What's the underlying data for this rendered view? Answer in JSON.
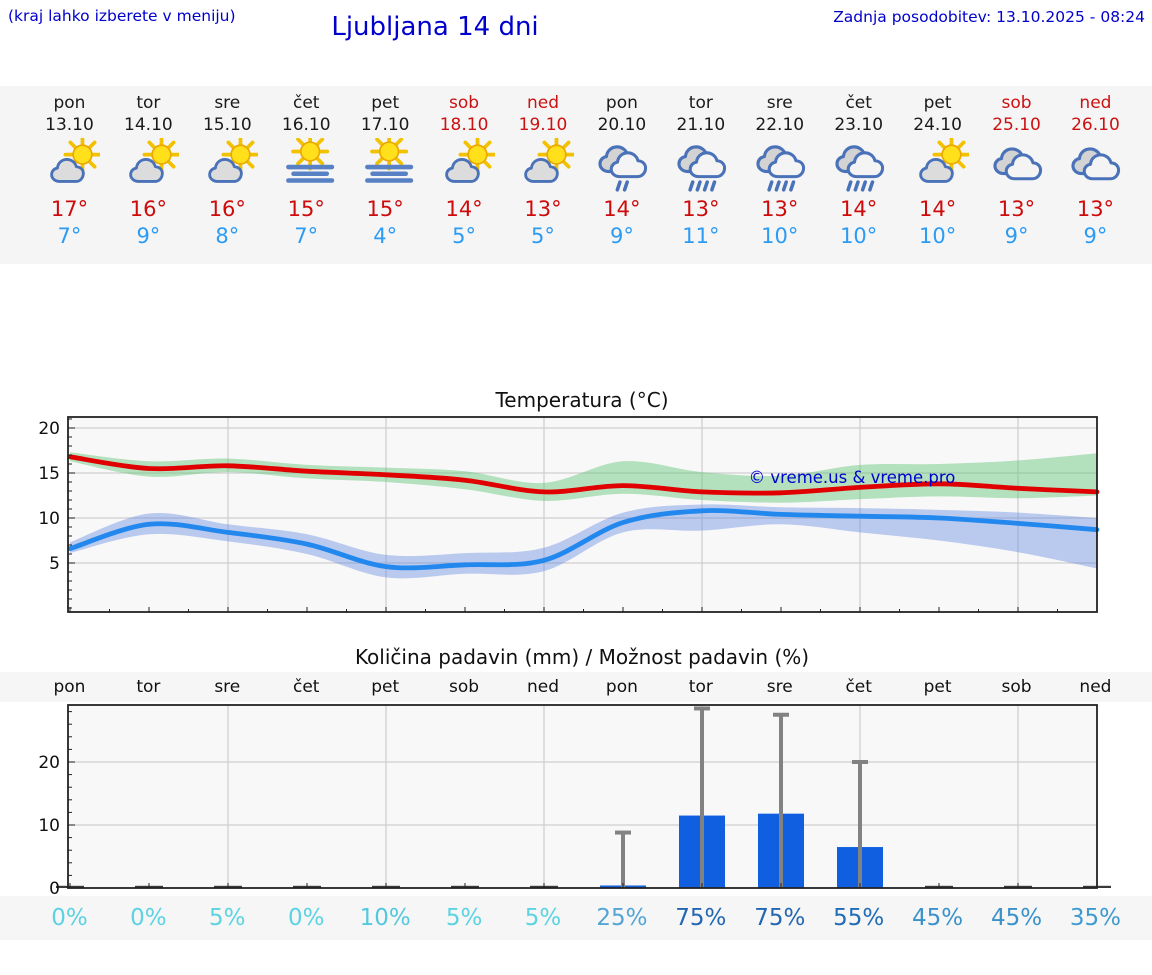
{
  "header": {
    "menu_hint": "(kraj lahko izberete v meniju)",
    "title": "Ljubljana 14 dni",
    "last_update": "Zadnja posodobitev: 13.10.2025 - 08:24"
  },
  "colors": {
    "header_blue": "#0000cc",
    "hi_red": "#cf0a0a",
    "lo_blue": "#2b9bf4",
    "weekday_text": "#1a1a1a",
    "weekend_text": "#cc1111",
    "bar_blue": "#0f5fe0",
    "whisker_gray": "#828282",
    "max_line_red": "#e00000",
    "min_line_blue": "#2288ee",
    "max_band_green": "rgba(110,200,130,0.50)",
    "min_band_blue": "rgba(100,135,225,0.42)",
    "strip_bg": "#f5f5f5",
    "plot_bg": "#f8f8f8"
  },
  "forecast": {
    "days": [
      {
        "name": "pon",
        "date": "13.10",
        "weekend": false,
        "icon": "partly-cloudy",
        "hi": "17°",
        "lo": "7°"
      },
      {
        "name": "tor",
        "date": "14.10",
        "weekend": false,
        "icon": "partly-cloudy",
        "hi": "16°",
        "lo": "9°"
      },
      {
        "name": "sre",
        "date": "15.10",
        "weekend": false,
        "icon": "partly-cloudy",
        "hi": "16°",
        "lo": "8°"
      },
      {
        "name": "čet",
        "date": "16.10",
        "weekend": false,
        "icon": "fog-sun",
        "hi": "15°",
        "lo": "7°"
      },
      {
        "name": "pet",
        "date": "17.10",
        "weekend": false,
        "icon": "fog-sun",
        "hi": "15°",
        "lo": "4°"
      },
      {
        "name": "sob",
        "date": "18.10",
        "weekend": true,
        "icon": "partly-cloudy",
        "hi": "14°",
        "lo": "5°"
      },
      {
        "name": "ned",
        "date": "19.10",
        "weekend": true,
        "icon": "partly-cloudy",
        "hi": "13°",
        "lo": "5°"
      },
      {
        "name": "pon",
        "date": "20.10",
        "weekend": false,
        "icon": "rain-light",
        "hi": "14°",
        "lo": "9°"
      },
      {
        "name": "tor",
        "date": "21.10",
        "weekend": false,
        "icon": "rain",
        "hi": "13°",
        "lo": "11°"
      },
      {
        "name": "sre",
        "date": "22.10",
        "weekend": false,
        "icon": "rain",
        "hi": "13°",
        "lo": "10°"
      },
      {
        "name": "čet",
        "date": "23.10",
        "weekend": false,
        "icon": "rain",
        "hi": "14°",
        "lo": "10°"
      },
      {
        "name": "pet",
        "date": "24.10",
        "weekend": false,
        "icon": "partly-cloudy",
        "hi": "14°",
        "lo": "10°"
      },
      {
        "name": "sob",
        "date": "25.10",
        "weekend": true,
        "icon": "cloudy",
        "hi": "13°",
        "lo": "9°"
      },
      {
        "name": "ned",
        "date": "26.10",
        "weekend": true,
        "icon": "cloudy",
        "hi": "13°",
        "lo": "9°"
      }
    ]
  },
  "chart_data": [
    {
      "type": "line",
      "title": "Temperatura (°C)",
      "categories": [
        "pon 13.10",
        "tor 14.10",
        "sre 15.10",
        "čet 16.10",
        "pet 17.10",
        "sob 18.10",
        "ned 19.10",
        "pon 20.10",
        "tor 21.10",
        "sre 22.10",
        "čet 23.10",
        "pet 24.10",
        "sob 25.10",
        "ned 26.10"
      ],
      "ylim": [
        -0.5,
        21.3
      ],
      "yticks": [
        5,
        10,
        15,
        20
      ],
      "grid": true,
      "watermark": "© vreme.us & vreme.pro",
      "series": [
        {
          "name": "max temperature",
          "color": "#e00000",
          "values": [
            16.8,
            15.5,
            15.8,
            15.2,
            14.8,
            14.2,
            12.9,
            13.6,
            12.9,
            12.8,
            13.4,
            13.8,
            13.3,
            12.9
          ]
        },
        {
          "name": "min temperature",
          "color": "#2288ee",
          "values": [
            6.6,
            9.3,
            8.4,
            7.1,
            4.6,
            4.8,
            5.3,
            9.5,
            10.8,
            10.4,
            10.2,
            10.0,
            9.4,
            8.7
          ]
        }
      ],
      "bands": [
        {
          "name": "max temperature range",
          "color": "rgba(110,200,130,0.50)",
          "upper": [
            17.3,
            16.3,
            16.6,
            15.9,
            15.6,
            15.2,
            13.9,
            16.3,
            15.1,
            14.7,
            15.9,
            16.0,
            16.4,
            17.2
          ],
          "lower": [
            16.3,
            14.6,
            15.1,
            14.4,
            14.0,
            13.2,
            11.9,
            12.7,
            12.0,
            11.7,
            12.1,
            12.4,
            12.2,
            12.5
          ]
        },
        {
          "name": "min temperature range",
          "color": "rgba(100,135,225,0.42)",
          "upper": [
            7.3,
            10.5,
            9.3,
            8.2,
            5.9,
            6.1,
            6.7,
            10.6,
            11.5,
            11.2,
            11.1,
            10.9,
            10.6,
            10.0
          ],
          "lower": [
            6.1,
            8.2,
            7.4,
            6.0,
            3.4,
            3.8,
            4.1,
            8.4,
            8.6,
            9.3,
            8.4,
            7.5,
            6.2,
            4.4
          ]
        }
      ]
    },
    {
      "type": "bar",
      "title": "Količina padavin (mm) / Možnost padavin (%)",
      "categories": [
        "pon",
        "tor",
        "sre",
        "čet",
        "pet",
        "sob",
        "ned",
        "pon",
        "tor",
        "sre",
        "čet",
        "pet",
        "sob",
        "ned"
      ],
      "values": [
        0,
        0,
        0,
        0,
        0,
        0,
        0,
        0.4,
        11.5,
        11.8,
        6.5,
        0,
        0,
        0
      ],
      "whisker_max": [
        0,
        0,
        0,
        0,
        0,
        0,
        0,
        8.8,
        28.5,
        27.5,
        20,
        0,
        0,
        0
      ],
      "ylim": [
        0,
        29
      ],
      "yticks": [
        0,
        10,
        20
      ],
      "grid": true,
      "percent_labels": [
        {
          "text": "0%",
          "color": "#5cd3e2"
        },
        {
          "text": "0%",
          "color": "#5cd3e2"
        },
        {
          "text": "5%",
          "color": "#5cd3e2"
        },
        {
          "text": "0%",
          "color": "#5cd3e2"
        },
        {
          "text": "10%",
          "color": "#54c8dd"
        },
        {
          "text": "5%",
          "color": "#5cd3e2"
        },
        {
          "text": "5%",
          "color": "#5cd3e2"
        },
        {
          "text": "25%",
          "color": "#54a5d6"
        },
        {
          "text": "75%",
          "color": "#2267b2"
        },
        {
          "text": "75%",
          "color": "#2267b2"
        },
        {
          "text": "55%",
          "color": "#1f6cb7"
        },
        {
          "text": "45%",
          "color": "#3b92cb"
        },
        {
          "text": "45%",
          "color": "#3b92cb"
        },
        {
          "text": "35%",
          "color": "#3f9ad0"
        }
      ]
    }
  ]
}
